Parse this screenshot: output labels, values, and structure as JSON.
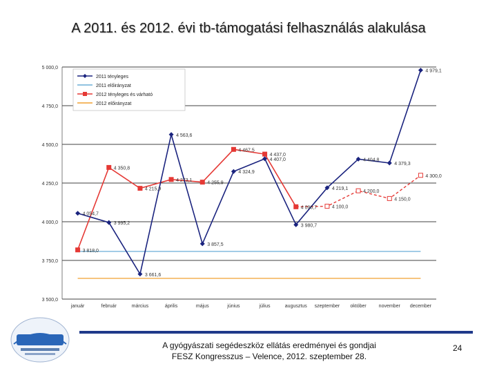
{
  "slide": {
    "title": "A 2011. és 2012. évi tb-támogatási felhasználás alakulása",
    "footer_line1": "A gyógyászati segédeszköz ellátás eredményei és gondjai",
    "footer_line2": "FESZ Kongresszus – Velence, 2012. szeptember 28.",
    "page_number": "24",
    "logo_text": "AMDM"
  },
  "colors": {
    "series_2011": "#1a237e",
    "plan_2011": "#6baed6",
    "series_2012": "#e53935",
    "plan_2012": "#f0a030",
    "grid": "#000000"
  },
  "chart_data": {
    "type": "line",
    "categories": [
      "január",
      "február",
      "március",
      "április",
      "május",
      "június",
      "július",
      "augusztus",
      "szeptember",
      "október",
      "november",
      "december"
    ],
    "ylim": [
      3500,
      5000
    ],
    "yticks": [
      3500,
      3750,
      4000,
      4250,
      4500,
      4750,
      5000
    ],
    "ytick_labels": [
      "3 500,0",
      "3 750,0",
      "4 000,0",
      "4 250,0",
      "4 500,0",
      "4 750,0",
      "5 000,0"
    ],
    "grid": true,
    "legend_position": "top-left",
    "series": [
      {
        "name": "2011 tényleges",
        "values": [
          4054.7,
          3995.2,
          3661.6,
          4563.6,
          3857.5,
          4324.9,
          4407.0,
          3980.7,
          4219.1,
          4404.8,
          4379.3,
          4979.1
        ],
        "labels": [
          "4 054,7",
          "3 995,2",
          "3 661,6",
          "4 563,6",
          "3 857,5",
          "4 324,9",
          "4 407,0",
          "3 980,7",
          "4 219,1",
          "4 404,8",
          "4 379,3",
          "4 979,1"
        ]
      },
      {
        "name": "2011 előirányzat",
        "values": [
          3808,
          3808,
          3808,
          3808,
          3808,
          3808,
          3808,
          3808,
          3808,
          3808,
          3808,
          3808
        ]
      },
      {
        "name": "2012 tényleges és várható",
        "values": [
          3818.0,
          4350.8,
          4215.9,
          4273.1,
          4255.9,
          4467.5,
          4437.0,
          4096.7,
          4100.0,
          4200.0,
          4150.0,
          4300.0
        ],
        "labels": [
          "3 818,0",
          "4 350,8",
          "4 215,9",
          "4 273,1",
          "4 255,9",
          "4 467,5",
          "4 437,0",
          "4 096,7",
          "4 100,0",
          "4 200,0",
          "4 150,0",
          "4 300,0"
        ],
        "actual_through_index": 7
      },
      {
        "name": "2012 előirányzat",
        "values": [
          3634,
          3634,
          3634,
          3634,
          3634,
          3634,
          3634,
          3634,
          3634,
          3634,
          3634,
          3634
        ]
      }
    ]
  }
}
